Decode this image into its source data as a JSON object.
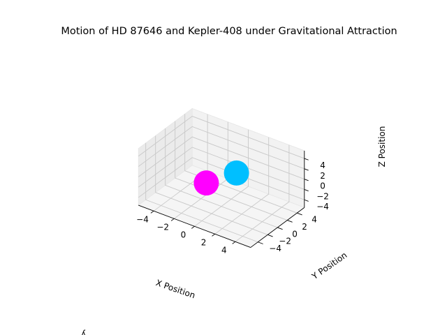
{
  "chart_data": {
    "type": "scatter",
    "title": "Motion of HD 87646 and Kepler-408 under Gravitational Attraction",
    "xlabel": "X Position",
    "ylabel": "Y Position",
    "zlabel": "Z Position",
    "xlim": [
      -5,
      5
    ],
    "ylim": [
      -5,
      5
    ],
    "zlim": [
      -5,
      5
    ],
    "xticks": [
      "−4",
      "−2",
      "0",
      "2",
      "4"
    ],
    "yticks": [
      "−4",
      "−2",
      "0",
      "2",
      "4"
    ],
    "zticks": [
      "−4",
      "−2",
      "0",
      "2",
      "4"
    ],
    "grid": true,
    "points": [
      {
        "x": -1.0,
        "y": -1.0,
        "z": -1.0,
        "color": "#ff00ff"
      },
      {
        "x": 1.0,
        "y": 1.0,
        "z": 1.0,
        "color": "#00bfff"
      }
    ],
    "footer_text": "ʎ"
  }
}
